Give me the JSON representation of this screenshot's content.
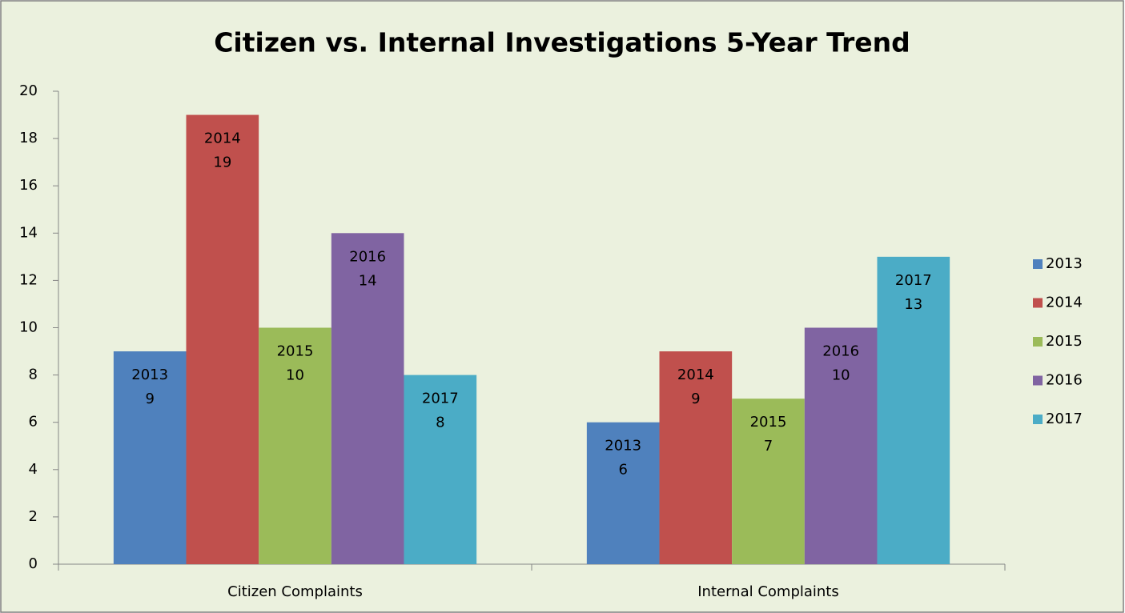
{
  "chart_data": {
    "type": "bar",
    "title": "Citizen vs. Internal Investigations 5-Year Trend",
    "categories": [
      "Citizen Complaints",
      "Internal Complaints"
    ],
    "series": [
      {
        "name": "2013",
        "color": "#4f81bd",
        "values": [
          9,
          6
        ]
      },
      {
        "name": "2014",
        "color": "#c0504d",
        "values": [
          19,
          9
        ]
      },
      {
        "name": "2015",
        "color": "#9bbb59",
        "values": [
          10,
          7
        ]
      },
      {
        "name": "2016",
        "color": "#8064a2",
        "values": [
          14,
          10
        ]
      },
      {
        "name": "2017",
        "color": "#4bacc6",
        "values": [
          8,
          13
        ]
      }
    ],
    "ylim": [
      0,
      20
    ],
    "yticks": [
      0,
      2,
      4,
      6,
      8,
      10,
      12,
      14,
      16,
      18,
      20
    ],
    "grid": false,
    "legend": "right",
    "data_labels": true
  }
}
